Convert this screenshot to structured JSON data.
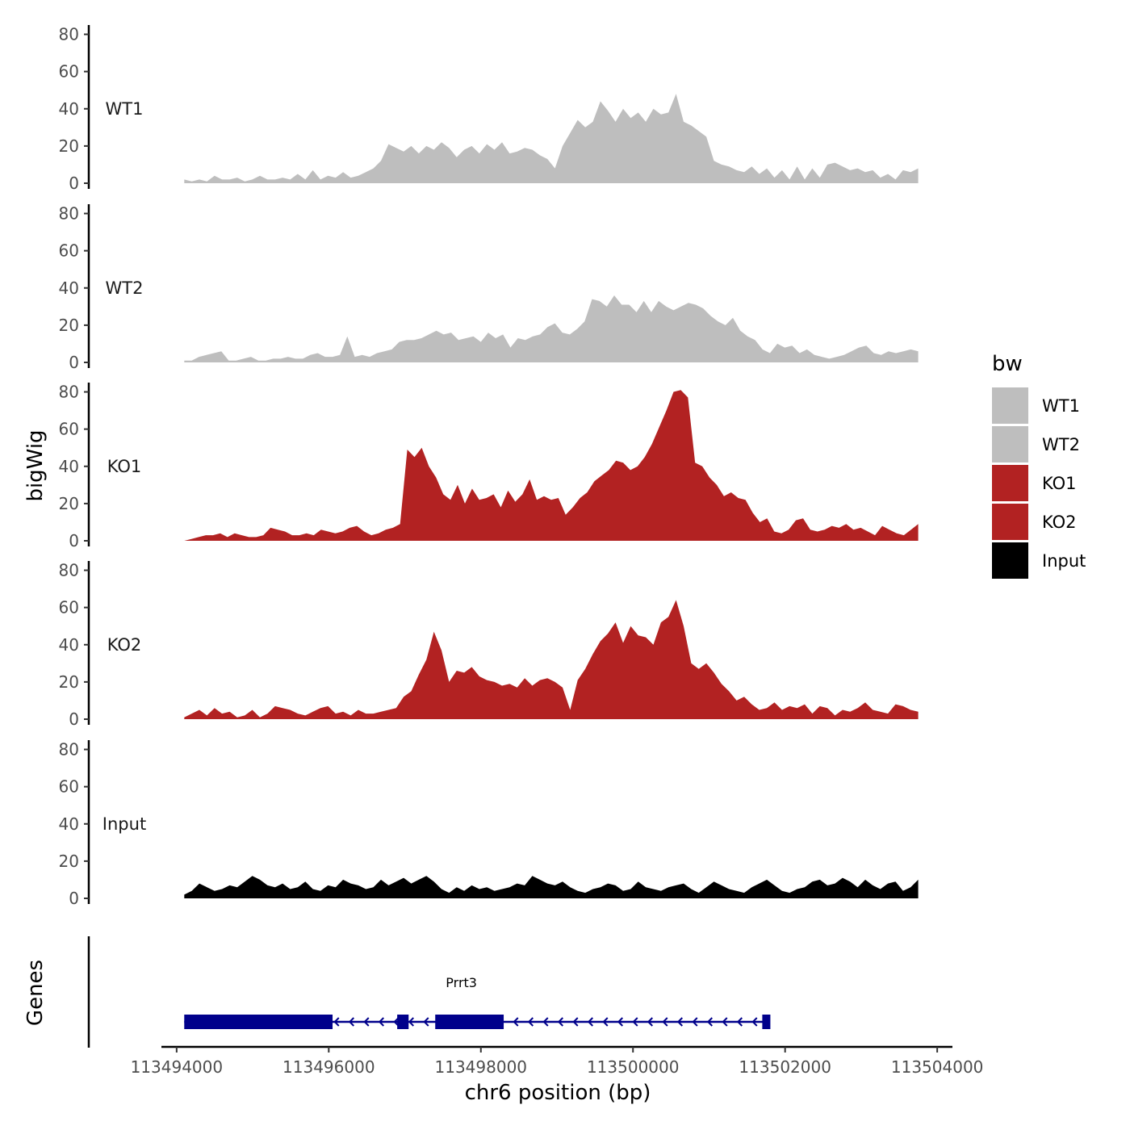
{
  "chart_data": {
    "type": "area",
    "title": "",
    "xlabel": "chr6 position (bp)",
    "ylabel": "bigWig",
    "genes_label": "Genes",
    "xlim": [
      113493800,
      113504200
    ],
    "ylim": [
      0,
      85
    ],
    "x_start": 113494100,
    "x_end": 113503750,
    "y_ticks": [
      0,
      20,
      40,
      60,
      80
    ],
    "x_ticks": [
      113494000,
      113496000,
      113498000,
      113500000,
      113502000,
      113504000
    ],
    "x_tick_labels": [
      "113494000",
      "113496000",
      "113498000",
      "113500000",
      "113502000",
      "113504000"
    ],
    "legend": {
      "title": "bw",
      "entries": [
        {
          "label": "WT1",
          "color": "#bebebe"
        },
        {
          "label": "WT2",
          "color": "#bebebe"
        },
        {
          "label": "KO1",
          "color": "#b22222"
        },
        {
          "label": "KO2",
          "color": "#b22222"
        },
        {
          "label": "Input",
          "color": "#000000"
        }
      ]
    },
    "series": [
      {
        "name": "WT1",
        "color": "#bebebe",
        "values": [
          2,
          1,
          2,
          1,
          4,
          2,
          2,
          3,
          1,
          2,
          4,
          2,
          2,
          3,
          2,
          5,
          2,
          7,
          2,
          4,
          3,
          6,
          3,
          4,
          6,
          8,
          12,
          21,
          19,
          17,
          20,
          16,
          20,
          18,
          22,
          19,
          14,
          18,
          20,
          16,
          21,
          18,
          22,
          16,
          17,
          19,
          18,
          15,
          13,
          8,
          20,
          27,
          34,
          30,
          33,
          44,
          39,
          33,
          40,
          35,
          38,
          33,
          40,
          37,
          38,
          48,
          33,
          31,
          28,
          25,
          12,
          10,
          9,
          7,
          6,
          9,
          5,
          8,
          3,
          7,
          2,
          9,
          2,
          8,
          3,
          10,
          11,
          9,
          7,
          8,
          6,
          7,
          3,
          5,
          2,
          7,
          6,
          8
        ]
      },
      {
        "name": "WT2",
        "color": "#bebebe",
        "values": [
          1,
          1,
          3,
          4,
          5,
          6,
          1,
          1,
          2,
          3,
          1,
          1,
          2,
          2,
          3,
          2,
          2,
          4,
          5,
          3,
          3,
          4,
          14,
          3,
          4,
          3,
          5,
          6,
          7,
          11,
          12,
          12,
          13,
          15,
          17,
          15,
          16,
          12,
          13,
          14,
          11,
          16,
          13,
          15,
          8,
          13,
          12,
          14,
          15,
          19,
          21,
          16,
          15,
          18,
          22,
          34,
          33,
          30,
          36,
          31,
          31,
          27,
          33,
          27,
          33,
          30,
          28,
          30,
          32,
          31,
          29,
          25,
          22,
          20,
          24,
          17,
          14,
          12,
          7,
          5,
          10,
          8,
          9,
          5,
          7,
          4,
          3,
          2,
          3,
          4,
          6,
          8,
          9,
          5,
          4,
          6,
          5,
          6,
          7,
          6
        ]
      },
      {
        "name": "KO1",
        "color": "#b22222",
        "values": [
          0,
          1,
          2,
          3,
          3,
          4,
          2,
          4,
          3,
          2,
          2,
          3,
          7,
          6,
          5,
          3,
          3,
          4,
          3,
          6,
          5,
          4,
          5,
          7,
          8,
          5,
          3,
          4,
          6,
          7,
          9,
          49,
          45,
          50,
          40,
          34,
          25,
          22,
          30,
          20,
          28,
          22,
          23,
          25,
          18,
          27,
          21,
          25,
          33,
          22,
          24,
          22,
          23,
          14,
          18,
          23,
          26,
          32,
          35,
          38,
          43,
          42,
          38,
          40,
          45,
          52,
          61,
          70,
          80,
          81,
          77,
          42,
          40,
          34,
          30,
          24,
          26,
          23,
          22,
          15,
          10,
          12,
          5,
          4,
          6,
          11,
          12,
          6,
          5,
          6,
          8,
          7,
          9,
          6,
          7,
          5,
          3,
          8,
          6,
          4,
          3,
          6,
          9
        ]
      },
      {
        "name": "KO2",
        "color": "#b22222",
        "values": [
          1,
          3,
          5,
          2,
          6,
          3,
          4,
          1,
          2,
          5,
          1,
          3,
          7,
          6,
          5,
          3,
          2,
          4,
          6,
          7,
          3,
          4,
          2,
          5,
          3,
          3,
          4,
          5,
          6,
          12,
          15,
          24,
          32,
          47,
          37,
          20,
          26,
          25,
          28,
          23,
          21,
          20,
          18,
          19,
          17,
          22,
          18,
          21,
          22,
          20,
          17,
          5,
          21,
          27,
          35,
          42,
          46,
          52,
          41,
          50,
          45,
          44,
          40,
          52,
          55,
          64,
          50,
          30,
          27,
          30,
          25,
          19,
          15,
          10,
          12,
          8,
          5,
          6,
          9,
          5,
          7,
          6,
          8,
          3,
          7,
          6,
          2,
          5,
          4,
          6,
          9,
          5,
          4,
          3,
          8,
          7,
          5,
          4
        ]
      },
      {
        "name": "Input",
        "color": "#000000",
        "values": [
          2,
          4,
          8,
          6,
          4,
          5,
          7,
          6,
          9,
          12,
          10,
          7,
          6,
          8,
          5,
          6,
          9,
          5,
          4,
          7,
          6,
          10,
          8,
          7,
          5,
          6,
          10,
          7,
          9,
          11,
          8,
          10,
          12,
          9,
          5,
          3,
          6,
          4,
          7,
          5,
          6,
          4,
          5,
          6,
          8,
          7,
          12,
          10,
          8,
          7,
          9,
          6,
          4,
          3,
          5,
          6,
          8,
          7,
          4,
          5,
          9,
          6,
          5,
          4,
          6,
          7,
          8,
          5,
          3,
          6,
          9,
          7,
          5,
          4,
          3,
          6,
          8,
          10,
          7,
          4,
          3,
          5,
          6,
          9,
          10,
          7,
          8,
          11,
          9,
          6,
          10,
          7,
          5,
          8,
          9,
          4,
          6,
          10
        ]
      }
    ],
    "gene": {
      "name": "Prrt3",
      "start": 113494100,
      "end": 113501800,
      "strand": "-",
      "color": "#00008b",
      "exons": [
        [
          113494100,
          113496050
        ],
        [
          113496900,
          113497050
        ],
        [
          113497400,
          113498300
        ],
        [
          113501700,
          113501800
        ]
      ]
    }
  }
}
